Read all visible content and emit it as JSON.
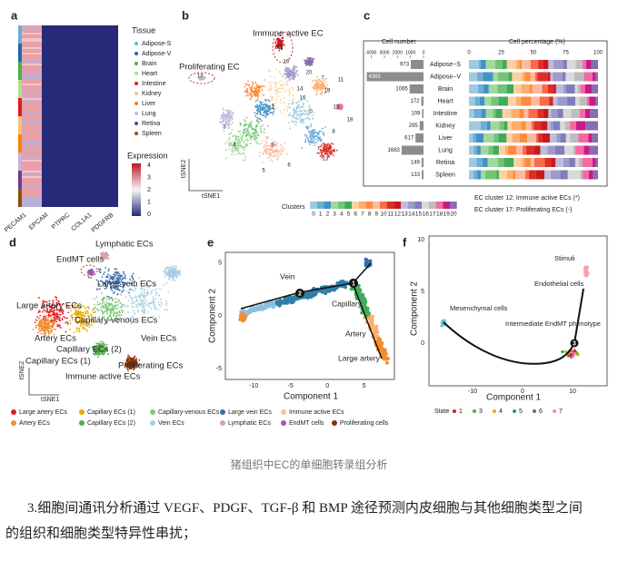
{
  "figure": {
    "panel_a": {
      "letter": "a",
      "genes": [
        "PECAM1",
        "EPCAM",
        "PTPRC",
        "COL1A1",
        "PDGFRB"
      ],
      "legend_title": "Tissue",
      "tissues": [
        "Adipose-S",
        "Adipose-V",
        "Brain",
        "Heart",
        "Intestine",
        "Kidney",
        "Liver",
        "Lung",
        "Retina",
        "Spleen"
      ],
      "expression_title": "Expression",
      "expression_ticks": [
        4,
        3,
        2,
        1,
        0
      ]
    },
    "panel_b": {
      "letter": "b",
      "annotations": [
        "Immune active EC",
        "Proliferating EC"
      ],
      "axis_y": "tSNE2",
      "axis_x": "tSNE1",
      "clusters_title": "Clusters",
      "cluster_labels": [
        0,
        1,
        2,
        3,
        4,
        5,
        6,
        7,
        8,
        9,
        10,
        11,
        12,
        13,
        14,
        15,
        16,
        17,
        18,
        19,
        20
      ]
    },
    "panel_c": {
      "letter": "c",
      "percentage_title": "Cell percentage (%)",
      "percentage_ticks": [
        0,
        25,
        50,
        75,
        100
      ],
      "notes": [
        "EC cluster 12: Immune active ECs (*)",
        "EC cluster 17: Proliferating ECs (-)"
      ]
    },
    "panel_d": {
      "letter": "d",
      "labels": [
        "Lymphatic ECs",
        "EndMT cells",
        "Large vein ECs",
        "Large artery ECs",
        "Capillary-venous ECs",
        "Artery ECs",
        "Vein ECs",
        "Capillary ECs (2)",
        "Capillary ECs (1)",
        "Proliferating ECs",
        "Immune active ECs"
      ],
      "axis_y": "tSNE2",
      "axis_x": "tSNE1",
      "legend": [
        "Large artery ECs",
        "Capillary ECs (1)",
        "Capillary-venous ECs",
        "Large vein ECs",
        "Immune active ECs",
        "Artery ECs",
        "Capillary ECs (2)",
        "Vein ECs",
        "Lymphatic ECs",
        "EndMT cells",
        "Proliferating cells"
      ]
    },
    "panel_e": {
      "letter": "e",
      "labels": [
        "Vein",
        "Capillary",
        "Artery",
        "Large artery"
      ],
      "branch_points": [
        1,
        2
      ],
      "axis_x": "Component 1",
      "axis_y": "Component 2",
      "xticks": [
        -10,
        -5,
        0,
        5
      ],
      "yticks": [
        -5,
        0,
        5
      ]
    },
    "panel_f": {
      "letter": "f",
      "labels": [
        "Stimuli",
        "Endothelial cells",
        "Mesenchymal cells",
        "Intermediate EndMT phenotype"
      ],
      "branch_point": 3,
      "axis_x": "Component 1",
      "axis_y": "Component 2",
      "xticks": [
        -10,
        0,
        10
      ],
      "yticks": [
        0,
        5,
        10
      ],
      "state_title": "State",
      "states": [
        1,
        3,
        4,
        5,
        6,
        7
      ]
    }
  },
  "caption": "猪组织中EC的单细胞转录组分析",
  "paragraph": [
    "3.细胞间通讯分析通过 VEGF、PDGF、TGF-β 和 BMP 途径预测内皮细胞与其他细胞类型之间",
    "的组织和细胞类型特异性串扰；"
  ],
  "chart_data": {
    "type": "bar",
    "orientation": "horizontal",
    "title": "Cell number",
    "categories": [
      "Adipose−S",
      "Adipose−V",
      "Brain",
      "Heart",
      "Intestine",
      "Kidney",
      "Liver",
      "Lung",
      "Retina",
      "Spleen"
    ],
    "values": [
      973,
      4365,
      1065,
      172,
      109,
      295,
      617,
      1683,
      149,
      133
    ],
    "color": "#8c8c8c",
    "xlim": [
      4400,
      0
    ],
    "xticks": [
      4000,
      3000,
      2000,
      1000,
      0
    ]
  }
}
